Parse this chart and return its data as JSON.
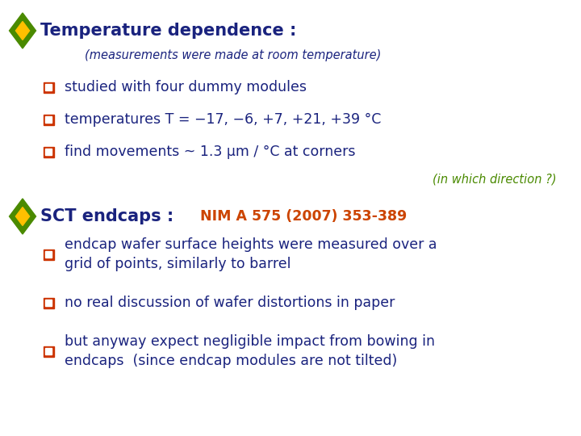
{
  "bg_color": "#ffffff",
  "diamond_outer": "#4a8a00",
  "diamond_inner": "#ffc000",
  "bullet_color": "#cc3300",
  "title_color": "#1a237e",
  "body_color": "#1a237e",
  "green_note_color": "#4a8a00",
  "orange_ref_color": "#cc4400",
  "title1": "Temperature dependence :",
  "subtitle1": "(measurements were made at room temperature)",
  "bullets1": [
    "studied with four dummy modules",
    "temperatures T = −17, −6, +7, +21, +39 °C",
    "find movements ~ 1.3 μm / °C at corners"
  ],
  "note1": "(in which direction ?)",
  "title2": "SCT endcaps :",
  "ref2": "NIM A 575 (2007) 353-389",
  "bullets2": [
    "endcap wafer surface heights were measured over a\ngrid of points, similarly to barrel",
    "no real discussion of wafer distortions in paper",
    "but anyway expect negligible impact from bowing in\nendcaps  (since endcap modules are not tilted)"
  ],
  "font_title": 15,
  "font_subtitle": 10.5,
  "font_body": 12.5,
  "font_note": 10.5,
  "font_ref": 12.5
}
